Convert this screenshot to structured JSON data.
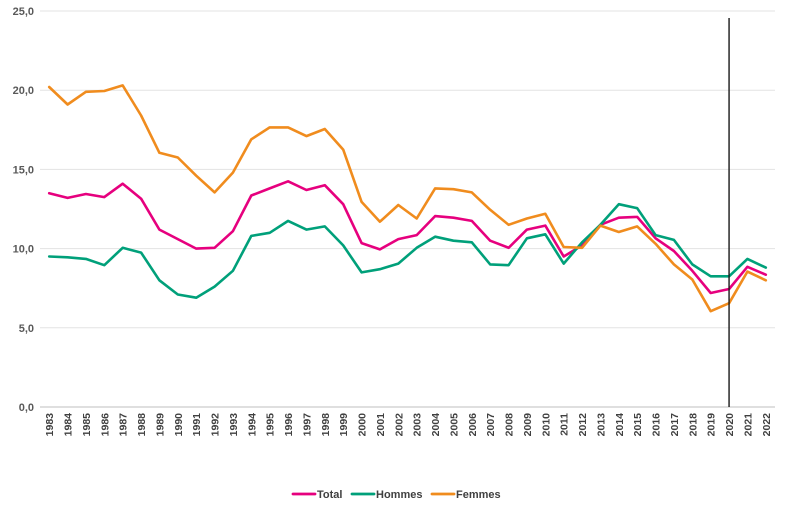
{
  "chart_data": {
    "type": "line",
    "title": "",
    "xlabel": "",
    "ylabel": "",
    "ylim": [
      0,
      25
    ],
    "yticks": [
      "0,0",
      "5,0",
      "10,0",
      "15,0",
      "20,0",
      "25,0"
    ],
    "grid": "horizontal",
    "legend_position": "bottom",
    "marker_line_year": "2020",
    "x": [
      "1983",
      "1984",
      "1985",
      "1986",
      "1987",
      "1988",
      "1989",
      "1990",
      "1991",
      "1992",
      "1993",
      "1994",
      "1995",
      "1996",
      "1997",
      "1998",
      "1999",
      "2000",
      "2001",
      "2002",
      "2003",
      "2004",
      "2005",
      "2006",
      "2007",
      "2008",
      "2009",
      "2010",
      "2011",
      "2012",
      "2013",
      "2014",
      "2015",
      "2016",
      "2017",
      "2018",
      "2019",
      "2020",
      "2021",
      "2022"
    ],
    "series": [
      {
        "name": "Total",
        "color": "#e6007e",
        "values": [
          13.5,
          13.2,
          13.45,
          13.25,
          14.1,
          13.15,
          11.2,
          10.6,
          10.0,
          10.05,
          11.1,
          13.35,
          13.8,
          14.25,
          13.7,
          14.0,
          12.8,
          10.35,
          9.95,
          10.6,
          10.85,
          12.05,
          11.95,
          11.75,
          10.5,
          10.05,
          11.2,
          11.45,
          9.5,
          10.2,
          11.5,
          11.95,
          12.0,
          10.65,
          9.85,
          8.6,
          7.2,
          7.45,
          8.85,
          8.35
        ]
      },
      {
        "name": "Hommes",
        "color": "#00a07a",
        "values": [
          9.5,
          9.45,
          9.35,
          8.95,
          10.05,
          9.75,
          8.0,
          7.1,
          6.9,
          7.6,
          8.6,
          10.8,
          11.0,
          11.75,
          11.2,
          11.4,
          10.2,
          8.5,
          8.7,
          9.05,
          10.05,
          10.75,
          10.5,
          10.4,
          9.0,
          8.95,
          10.65,
          10.9,
          9.05,
          10.4,
          11.5,
          12.8,
          12.55,
          10.85,
          10.55,
          9.0,
          8.25,
          8.25,
          9.35,
          8.8
        ]
      },
      {
        "name": "Femmes",
        "color": "#f08c1e",
        "values": [
          20.2,
          19.1,
          19.9,
          19.95,
          20.3,
          18.4,
          16.05,
          15.75,
          14.6,
          13.55,
          14.8,
          16.9,
          17.65,
          17.65,
          17.1,
          17.55,
          16.25,
          12.95,
          11.7,
          12.75,
          11.9,
          13.8,
          13.75,
          13.55,
          12.45,
          11.5,
          11.9,
          12.2,
          10.1,
          10.05,
          11.45,
          11.05,
          11.4,
          10.3,
          9.0,
          8.05,
          6.05,
          6.55,
          8.55,
          8.0
        ]
      }
    ]
  }
}
